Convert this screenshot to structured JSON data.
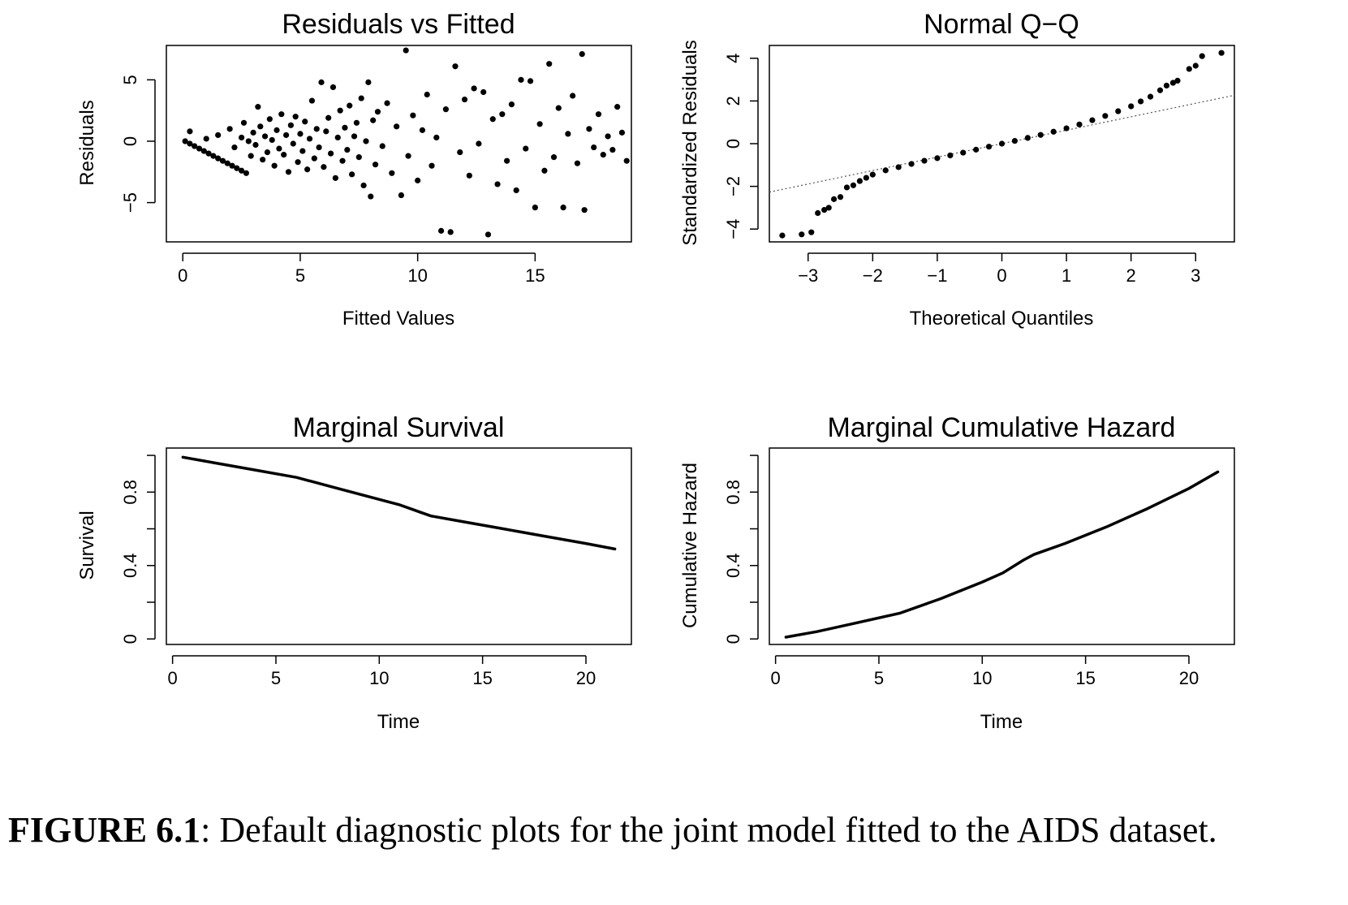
{
  "caption": {
    "label": "FIGURE 6.1",
    "text": ": Default diagnostic plots for the joint model fitted to the AIDS dataset."
  },
  "chart_data": [
    {
      "type": "scatter",
      "title": "Residuals vs Fitted",
      "xlabel": "Fitted Values",
      "ylabel": "Residuals",
      "xlim": [
        -0.7,
        19.1
      ],
      "ylim": [
        -8.2,
        7.8
      ],
      "xticks": [
        0,
        5,
        10,
        15
      ],
      "yticks": [
        -5,
        0,
        5
      ],
      "grid": false,
      "note": "about 1,400 points; fan-shaped spread widening with fitted value; lower linear bound near residual = -fitted for small fitted values",
      "points": [
        [
          0.1,
          0.0
        ],
        [
          0.3,
          -0.2
        ],
        [
          0.5,
          -0.4
        ],
        [
          0.7,
          -0.6
        ],
        [
          0.9,
          -0.8
        ],
        [
          1.1,
          -1.0
        ],
        [
          1.3,
          -1.2
        ],
        [
          1.5,
          -1.4
        ],
        [
          1.7,
          -1.6
        ],
        [
          1.9,
          -1.8
        ],
        [
          2.1,
          -2.0
        ],
        [
          2.3,
          -2.2
        ],
        [
          2.5,
          -2.4
        ],
        [
          2.7,
          -2.6
        ],
        [
          0.3,
          0.8
        ],
        [
          1.0,
          0.2
        ],
        [
          1.5,
          0.5
        ],
        [
          2.0,
          1.0
        ],
        [
          2.2,
          -0.5
        ],
        [
          2.5,
          0.3
        ],
        [
          2.6,
          1.5
        ],
        [
          2.8,
          0.0
        ],
        [
          2.9,
          -1.2
        ],
        [
          3.0,
          0.7
        ],
        [
          3.1,
          -0.3
        ],
        [
          3.2,
          2.8
        ],
        [
          3.3,
          1.2
        ],
        [
          3.4,
          -1.5
        ],
        [
          3.5,
          0.4
        ],
        [
          3.6,
          -0.9
        ],
        [
          3.7,
          1.8
        ],
        [
          3.8,
          0.1
        ],
        [
          3.9,
          -2.0
        ],
        [
          4.0,
          0.9
        ],
        [
          4.1,
          -0.6
        ],
        [
          4.2,
          2.2
        ],
        [
          4.3,
          -1.1
        ],
        [
          4.4,
          0.5
        ],
        [
          4.5,
          -2.5
        ],
        [
          4.6,
          1.3
        ],
        [
          4.7,
          -0.2
        ],
        [
          4.8,
          2.0
        ],
        [
          4.9,
          -1.7
        ],
        [
          5.0,
          0.6
        ],
        [
          5.1,
          -0.8
        ],
        [
          5.2,
          1.6
        ],
        [
          5.3,
          -2.3
        ],
        [
          5.4,
          0.2
        ],
        [
          5.5,
          3.3
        ],
        [
          5.6,
          -1.4
        ],
        [
          5.7,
          1.0
        ],
        [
          5.8,
          -0.5
        ],
        [
          5.9,
          4.8
        ],
        [
          6.0,
          -2.1
        ],
        [
          6.1,
          0.8
        ],
        [
          6.2,
          1.9
        ],
        [
          6.3,
          -1.0
        ],
        [
          6.4,
          4.4
        ],
        [
          6.5,
          -3.0
        ],
        [
          6.6,
          0.3
        ],
        [
          6.7,
          2.5
        ],
        [
          6.8,
          -1.6
        ],
        [
          6.9,
          1.1
        ],
        [
          7.0,
          -0.7
        ],
        [
          7.1,
          2.9
        ],
        [
          7.2,
          -2.7
        ],
        [
          7.3,
          0.4
        ],
        [
          7.4,
          1.5
        ],
        [
          7.5,
          -1.3
        ],
        [
          7.6,
          3.5
        ],
        [
          7.7,
          -3.6
        ],
        [
          7.8,
          0.0
        ],
        [
          7.9,
          4.8
        ],
        [
          8.0,
          -4.5
        ],
        [
          8.1,
          1.7
        ],
        [
          8.2,
          -1.9
        ],
        [
          8.3,
          2.4
        ],
        [
          8.5,
          -0.4
        ],
        [
          8.7,
          3.1
        ],
        [
          8.9,
          -2.6
        ],
        [
          9.1,
          1.2
        ],
        [
          9.3,
          -4.4
        ],
        [
          9.5,
          7.4
        ],
        [
          9.6,
          -1.2
        ],
        [
          9.8,
          2.1
        ],
        [
          10.0,
          -3.2
        ],
        [
          10.2,
          0.9
        ],
        [
          10.4,
          3.8
        ],
        [
          10.6,
          -2.0
        ],
        [
          10.8,
          0.3
        ],
        [
          11.0,
          -7.3
        ],
        [
          11.2,
          2.6
        ],
        [
          11.4,
          -7.4
        ],
        [
          11.6,
          6.1
        ],
        [
          11.8,
          -0.9
        ],
        [
          12.0,
          3.4
        ],
        [
          12.2,
          -2.8
        ],
        [
          12.4,
          4.3
        ],
        [
          12.6,
          -0.2
        ],
        [
          12.8,
          4.0
        ],
        [
          13.0,
          -7.6
        ],
        [
          13.2,
          1.8
        ],
        [
          13.4,
          -3.5
        ],
        [
          13.6,
          2.2
        ],
        [
          13.8,
          -1.6
        ],
        [
          14.0,
          3.0
        ],
        [
          14.2,
          -4.0
        ],
        [
          14.4,
          5.0
        ],
        [
          14.6,
          -0.6
        ],
        [
          14.8,
          4.9
        ],
        [
          15.0,
          -5.4
        ],
        [
          15.2,
          1.4
        ],
        [
          15.4,
          -2.4
        ],
        [
          15.6,
          6.3
        ],
        [
          15.8,
          -1.3
        ],
        [
          16.0,
          2.7
        ],
        [
          16.2,
          -5.4
        ],
        [
          16.4,
          0.6
        ],
        [
          16.6,
          3.7
        ],
        [
          16.8,
          -1.8
        ],
        [
          17.0,
          7.1
        ],
        [
          17.1,
          -5.6
        ],
        [
          17.3,
          1.0
        ],
        [
          17.5,
          -0.5
        ],
        [
          17.7,
          2.2
        ],
        [
          17.9,
          -1.1
        ],
        [
          18.1,
          0.4
        ],
        [
          18.3,
          -0.7
        ],
        [
          18.5,
          2.8
        ],
        [
          18.7,
          0.7
        ],
        [
          18.9,
          -1.6
        ]
      ]
    },
    {
      "type": "scatter",
      "title": "Normal Q−Q",
      "xlabel": "Theoretical Quantiles",
      "ylabel": "Standardized Residuals",
      "xlim": [
        -3.6,
        3.6
      ],
      "ylim": [
        -4.6,
        4.6
      ],
      "xticks": [
        -3,
        -2,
        -1,
        0,
        1,
        2,
        3
      ],
      "yticks": [
        -4,
        -2,
        0,
        2,
        4
      ],
      "grid": false,
      "reference_line": {
        "intercept": 0.0,
        "slope": 0.63,
        "style": "dotted"
      },
      "points": [
        [
          -3.4,
          -4.3
        ],
        [
          -3.1,
          -4.25
        ],
        [
          -2.95,
          -4.15
        ],
        [
          -2.85,
          -3.25
        ],
        [
          -2.75,
          -3.1
        ],
        [
          -2.68,
          -3.0
        ],
        [
          -2.6,
          -2.6
        ],
        [
          -2.5,
          -2.5
        ],
        [
          -2.4,
          -2.05
        ],
        [
          -2.3,
          -1.95
        ],
        [
          -2.2,
          -1.75
        ],
        [
          -2.1,
          -1.6
        ],
        [
          -2.0,
          -1.45
        ],
        [
          -1.8,
          -1.25
        ],
        [
          -1.6,
          -1.1
        ],
        [
          -1.4,
          -0.95
        ],
        [
          -1.2,
          -0.8
        ],
        [
          -1.0,
          -0.68
        ],
        [
          -0.8,
          -0.55
        ],
        [
          -0.6,
          -0.42
        ],
        [
          -0.4,
          -0.28
        ],
        [
          -0.2,
          -0.14
        ],
        [
          0.0,
          0.0
        ],
        [
          0.2,
          0.13
        ],
        [
          0.4,
          0.27
        ],
        [
          0.6,
          0.41
        ],
        [
          0.8,
          0.56
        ],
        [
          1.0,
          0.72
        ],
        [
          1.2,
          0.9
        ],
        [
          1.4,
          1.1
        ],
        [
          1.6,
          1.3
        ],
        [
          1.8,
          1.52
        ],
        [
          2.0,
          1.75
        ],
        [
          2.15,
          1.98
        ],
        [
          2.3,
          2.2
        ],
        [
          2.45,
          2.5
        ],
        [
          2.55,
          2.72
        ],
        [
          2.65,
          2.85
        ],
        [
          2.72,
          2.95
        ],
        [
          2.9,
          3.5
        ],
        [
          3.0,
          3.65
        ],
        [
          3.1,
          4.1
        ],
        [
          3.4,
          4.25
        ]
      ]
    },
    {
      "type": "line",
      "title": "Marginal Survival",
      "xlabel": "Time",
      "ylabel": "Survival",
      "xlim": [
        -0.3,
        22.2
      ],
      "ylim": [
        -0.03,
        1.04
      ],
      "xticks": [
        0,
        5,
        10,
        15,
        20
      ],
      "yticks": [
        0.0,
        0.2,
        0.4,
        0.6,
        0.8,
        1.0
      ],
      "ytick_labels_shown": [
        0.0,
        0.4,
        0.8
      ],
      "grid": false,
      "x": [
        0.5,
        2,
        4,
        6,
        8,
        10,
        11,
        12,
        12.5,
        14,
        16,
        18,
        20,
        21.4
      ],
      "y": [
        0.99,
        0.96,
        0.92,
        0.88,
        0.82,
        0.76,
        0.73,
        0.69,
        0.67,
        0.64,
        0.6,
        0.56,
        0.52,
        0.49
      ]
    },
    {
      "type": "line",
      "title": "Marginal Cumulative Hazard",
      "xlabel": "Time",
      "ylabel": "Cumulative Hazard",
      "xlim": [
        -0.3,
        22.2
      ],
      "ylim": [
        -0.03,
        1.04
      ],
      "xticks": [
        0,
        5,
        10,
        15,
        20
      ],
      "yticks": [
        0.0,
        0.2,
        0.4,
        0.6,
        0.8,
        1.0
      ],
      "ytick_labels_shown": [
        0.0,
        0.4,
        0.8
      ],
      "grid": false,
      "x": [
        0.5,
        2,
        4,
        6,
        8,
        10,
        11,
        12,
        12.5,
        14,
        16,
        18,
        20,
        21.4
      ],
      "y": [
        0.01,
        0.04,
        0.09,
        0.14,
        0.22,
        0.31,
        0.36,
        0.43,
        0.46,
        0.52,
        0.61,
        0.71,
        0.82,
        0.91
      ]
    }
  ]
}
